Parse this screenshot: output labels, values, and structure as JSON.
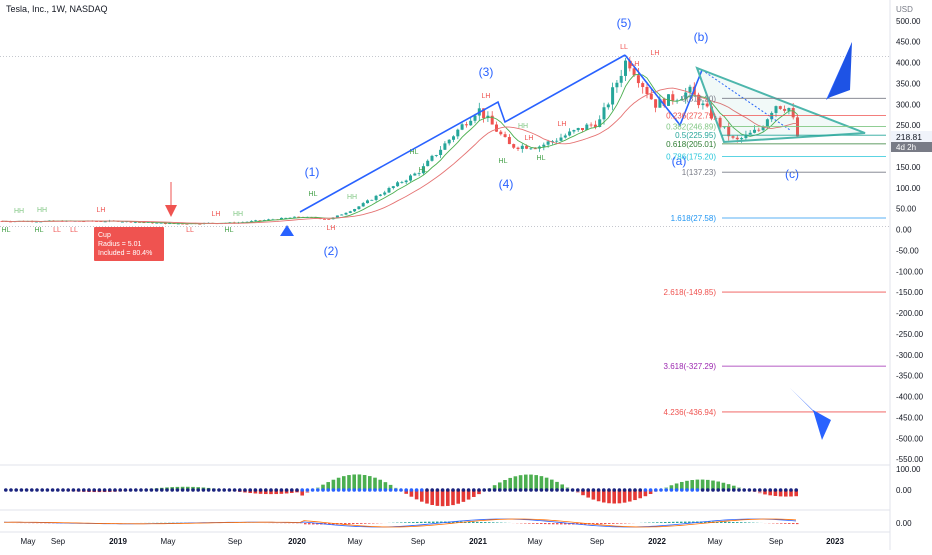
{
  "header": {
    "title": "Tesla, Inc., 1W, NASDAQ"
  },
  "price_axis": {
    "currency": "USD",
    "ticks": [
      "500.00",
      "450.00",
      "400.00",
      "350.00",
      "300.00",
      "250.00",
      "200.00",
      "150.00",
      "100.00",
      "50.00",
      "0.00",
      "-50.00",
      "-100.00",
      "-150.00",
      "-200.00",
      "-250.00",
      "-300.00",
      "-350.00",
      "-400.00",
      "-450.00",
      "-500.00",
      "-550.00"
    ],
    "last_price": "218.81",
    "countdown": "4d 2h"
  },
  "time_axis": {
    "labels": [
      "May",
      "Sep",
      "2019",
      "May",
      "Sep",
      "2020",
      "May",
      "Sep",
      "2021",
      "May",
      "Sep",
      "2022",
      "May",
      "Sep",
      "2023"
    ]
  },
  "chart_data": {
    "type": "line",
    "title": "Tesla, Inc., 1W, NASDAQ",
    "xlabel": "",
    "ylabel": "USD",
    "ylim": [
      -560,
      520
    ],
    "x": [
      "2018-05",
      "2018-09",
      "2019-01",
      "2019-05",
      "2019-09",
      "2020-01",
      "2020-03",
      "2020-05",
      "2020-09",
      "2021-01",
      "2021-03",
      "2021-05",
      "2021-09",
      "2021-11",
      "2022-01",
      "2022-03",
      "2022-05",
      "2022-07",
      "2022-08",
      "2022-09",
      "2022-10"
    ],
    "series": [
      {
        "values": [
          20,
          20,
          20,
          14,
          16,
          30,
          25,
          50,
          140,
          290,
          200,
          200,
          260,
          410,
          300,
          330,
          210,
          240,
          300,
          290,
          218.81
        ]
      }
    ]
  },
  "wave_labels": [
    "(1)",
    "(2)",
    "(3)",
    "(4)",
    "(5)",
    "(a)",
    "(b)",
    "(c)"
  ],
  "pivot_labels": [
    "HH",
    "HH",
    "HL",
    "HL",
    "LL",
    "LL",
    "LH",
    "LH",
    "LL",
    "LH",
    "HL",
    "HH",
    "HL",
    "LH",
    "HH",
    "HL",
    "HL",
    "LH",
    "HL",
    "HH",
    "LH",
    "HL",
    "LH",
    "LL",
    "LH",
    "LH"
  ],
  "fib_levels": [
    {
      "label": "0(314.20)"
    },
    {
      "label": "0.236(272.79)"
    },
    {
      "label": "0.382(246.89)"
    },
    {
      "label": "0.5(225.95)"
    },
    {
      "label": "0.618(205.01)"
    },
    {
      "label": "0.786(175.20)"
    },
    {
      "label": "1(137.23)"
    },
    {
      "label": "1.618(27.58)"
    },
    {
      "label": "2.618(-149.85)"
    },
    {
      "label": "3.618(-327.29)"
    },
    {
      "label": "4.236(-436.94)"
    }
  ],
  "cup_box": {
    "line1": "Cup",
    "line2": "Radius = 5.01",
    "line3": "Included = 80.4%"
  },
  "indicator1": {
    "ticks": [
      "100.00",
      "0.00"
    ]
  },
  "indicator2": {
    "ticks": [
      "0.00"
    ]
  },
  "colors": {
    "wave_blue": "#2962ff",
    "fib_teal": "#26a69a",
    "fib_red": "#ef5350",
    "fib_purple": "#9c27b0",
    "up_green": "#26a69a",
    "down_red": "#ef5350",
    "triangle": "#4db6ac"
  }
}
